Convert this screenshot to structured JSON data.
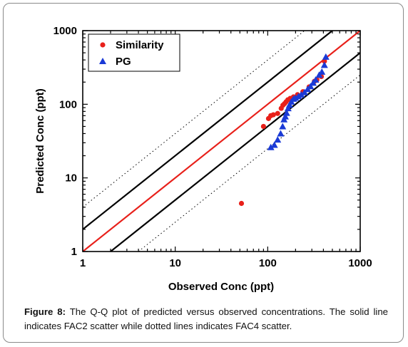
{
  "caption": {
    "label": "Figure 8:",
    "text": " The Q-Q plot of predicted versus observed concentrations. The solid line indicates FAC2 scatter while dotted lines indicates FAC4 scatter."
  },
  "chart_data": {
    "type": "scatter",
    "title": "",
    "xlabel": "Observed Conc (ppt)",
    "ylabel": "Predicted Conc (ppt)",
    "xscale": "log",
    "yscale": "log",
    "xlim": [
      1,
      1000
    ],
    "ylim": [
      1,
      1000
    ],
    "x_tick_labels": [
      "1",
      "10",
      "100",
      "1000"
    ],
    "y_tick_labels": [
      "1",
      "10",
      "100",
      "1000"
    ],
    "grid": false,
    "legend": "top-left",
    "reference_lines": [
      {
        "kind": "1:1",
        "factor": 1,
        "color": "#e8201a",
        "style": "solid"
      },
      {
        "kind": "FAC2 upper",
        "factor": 2,
        "color": "#000000",
        "style": "solid"
      },
      {
        "kind": "FAC2 lower",
        "factor": 0.5,
        "color": "#000000",
        "style": "solid"
      },
      {
        "kind": "FAC4 upper",
        "factor": 4,
        "color": "#000000",
        "style": "dotted"
      },
      {
        "kind": "FAC4 lower",
        "factor": 0.25,
        "color": "#000000",
        "style": "dotted"
      }
    ],
    "series": [
      {
        "name": "Similarity",
        "marker": "circle",
        "color": "#e8201a",
        "points": [
          [
            52,
            4.5
          ],
          [
            90,
            50
          ],
          [
            102,
            64
          ],
          [
            108,
            70
          ],
          [
            115,
            72
          ],
          [
            128,
            75
          ],
          [
            140,
            88
          ],
          [
            146,
            97
          ],
          [
            152,
            102
          ],
          [
            158,
            108
          ],
          [
            165,
            115
          ],
          [
            175,
            120
          ],
          [
            190,
            126
          ],
          [
            210,
            135
          ],
          [
            240,
            148
          ],
          [
            280,
            172
          ],
          [
            320,
            205
          ],
          [
            340,
            215
          ],
          [
            380,
            238
          ],
          [
            410,
            385
          ]
        ]
      },
      {
        "name": "PG",
        "marker": "triangle",
        "color": "#1a3ad6",
        "points": [
          [
            108,
            26
          ],
          [
            118,
            28
          ],
          [
            128,
            33
          ],
          [
            138,
            40
          ],
          [
            145,
            50
          ],
          [
            150,
            62
          ],
          [
            155,
            68
          ],
          [
            160,
            76
          ],
          [
            166,
            88
          ],
          [
            172,
            98
          ],
          [
            180,
            108
          ],
          [
            190,
            118
          ],
          [
            200,
            122
          ],
          [
            215,
            128
          ],
          [
            230,
            135
          ],
          [
            250,
            145
          ],
          [
            270,
            160
          ],
          [
            290,
            175
          ],
          [
            310,
            195
          ],
          [
            330,
            215
          ],
          [
            360,
            250
          ],
          [
            385,
            275
          ],
          [
            410,
            340
          ],
          [
            425,
            440
          ]
        ]
      }
    ]
  }
}
